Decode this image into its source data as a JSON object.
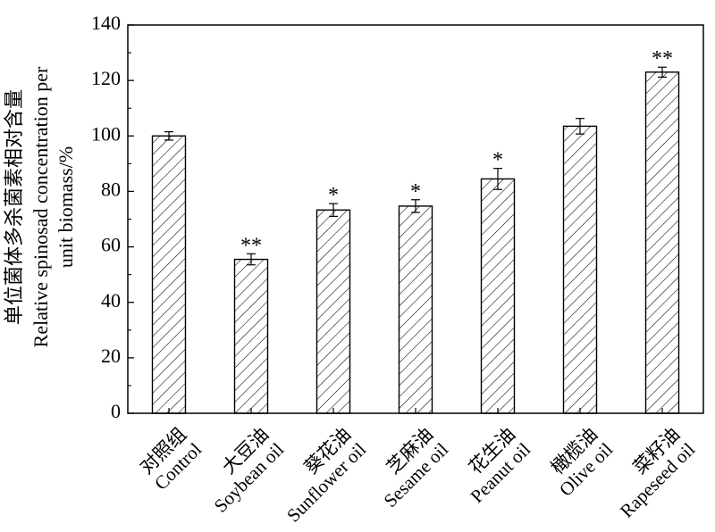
{
  "chart_data": {
    "type": "bar",
    "ylabel_cn": "单位菌体多杀菌素相对含量",
    "ylabel_en_line1": "Relative spinosad concentration per",
    "ylabel_en_line2": "unit biomass/%",
    "ylim": [
      0,
      140
    ],
    "yticks": [
      0,
      20,
      40,
      60,
      80,
      100,
      120,
      140
    ],
    "grid": false,
    "bar_pattern": "diagonal-hatch",
    "categories": [
      {
        "cn": "对照组",
        "en": "Control",
        "value": 100,
        "error": 1.5,
        "sig": ""
      },
      {
        "cn": "大豆油",
        "en": "Soybean oil",
        "value": 55.5,
        "error": 2,
        "sig": "**"
      },
      {
        "cn": "葵花油",
        "en": "Sunflower oil",
        "value": 73.3,
        "error": 2.3,
        "sig": "*"
      },
      {
        "cn": "芝麻油",
        "en": "Sesame oil",
        "value": 74.7,
        "error": 2.3,
        "sig": "*"
      },
      {
        "cn": "花生油",
        "en": "Peanut oil",
        "value": 84.5,
        "error": 3.8,
        "sig": "*"
      },
      {
        "cn": "橄榄油",
        "en": "Olive oil",
        "value": 103.5,
        "error": 2.8,
        "sig": ""
      },
      {
        "cn": "菜籽油",
        "en": "Rapeseed oil",
        "value": 123,
        "error": 1.8,
        "sig": "**"
      }
    ]
  }
}
